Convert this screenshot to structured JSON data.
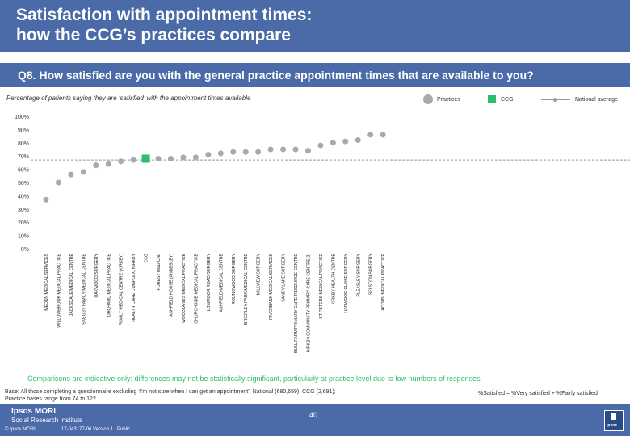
{
  "header": {
    "title_line1": "Satisfaction with appointment times:",
    "title_line2": "how the CCG’s practices compare"
  },
  "question": "Q8. How satisfied are you with the general practice appointment times that are available to you?",
  "subtitle": "Percentage of patients saying they are ‘satisfied’ with the appointment times available",
  "legend": {
    "practices": "Practices",
    "ccg": "CCG",
    "national": "National average"
  },
  "colors": {
    "brand": "#4a6aa8",
    "practice": "#a8a9ab",
    "ccg": "#2ebd6a",
    "national": "#999999",
    "note": "#2ebd6a"
  },
  "chart_data": {
    "type": "scatter",
    "ylim": [
      0,
      100
    ],
    "yticks": [
      "0%",
      "10%",
      "20%",
      "30%",
      "40%",
      "50%",
      "60%",
      "70%",
      "80%",
      "90%",
      "100%"
    ],
    "national_average": 67,
    "ccg_label": "CCG",
    "categories": [
      "MEDEN MEDICAL SERVICES",
      "WILLOWBROOK MEDICAL PRACTICE",
      "JACKSDALE MEDICAL CENTRE",
      "SKEGBY FAMILY MEDICAL CENTRE",
      "OAKWOOD SURGERY",
      "ORCHARD MEDICAL PRACTICE",
      "FAMILY MEDICAL CENTRE (KIRKBY)",
      "HEALTH CARE COMPLEX, KIRKBY",
      "CCG",
      "FOREST MEDICAL",
      "ASHFIELD HOUSE (ANNESLEY)",
      "WOODLANDS MEDICAL PRACTICE",
      "CHURCHSIDE MEDICAL PRACTICE",
      "LOWMOOR ROAD SURGERY",
      "ASHFIELD MEDICAL CENTRE",
      "ROUNDWOOD SURGERY",
      "BRIERLEY PARK MEDICAL CENTRE",
      "MILLVIEW SURGERY",
      "RIVERBANK MEDICAL SERVICES",
      "SANDY LANE SURGERY",
      "BULL FARM PRIMARY CARE RESOURCE CENTRE",
      "KIRKBY COMMUNITY PRIMARY CARE CENTRE(2)",
      "ST PETERS MEDICAL PRACTICE",
      "KIRKBY HEALTH CENTRE",
      "HARWOOD CLOSE SURGERY",
      "PLEASLEY SURGERY",
      "SELSTON SURGERY",
      "ACORN MEDICAL PRACTICE"
    ],
    "values": [
      37,
      50,
      56,
      58,
      63,
      64,
      66,
      67,
      68,
      68,
      68,
      69,
      69,
      71,
      72,
      73,
      73,
      73,
      75,
      75,
      75,
      74,
      78,
      80,
      81,
      82,
      86,
      86
    ]
  },
  "note": "Comparisons are indicative only: differences may not be statistically significant, particularly at practice level due to low numbers of responses",
  "base": {
    "line1": "Base: All those completing a questionnaire excluding ‘I’m not sure when I can get an appointment’: National (680,659); CCG (2,691);",
    "line2": "Practice bases range from 74 to 122"
  },
  "satisfied_def": "%Satisfied = %Very satisfied + %Fairly satisfied",
  "footer": {
    "brand1": "Ipsos MORI",
    "brand2": "Social Research Institute",
    "copyright": "© Ipsos MORI",
    "jobref": "17-043177-06 Version 1 | Public",
    "page": "40",
    "logo_text": "Ipsos"
  }
}
